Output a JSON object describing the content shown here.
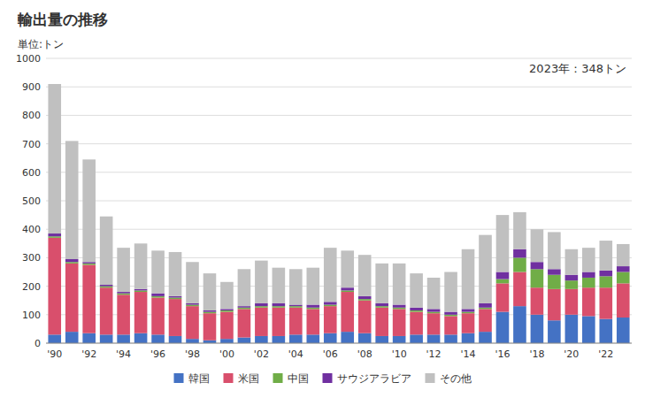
{
  "chart_data": {
    "type": "bar",
    "stacked": true,
    "title": "輸出量の推移",
    "y_label": "単位:トン",
    "annotation": "2023年：348トン",
    "categories": [
      "'90",
      null,
      "'92",
      null,
      "'94",
      null,
      "'96",
      null,
      "'98",
      null,
      "'00",
      null,
      "'02",
      null,
      "'04",
      null,
      "'06",
      null,
      "'08",
      null,
      "'10",
      null,
      "'12",
      null,
      "'14",
      null,
      "'16",
      null,
      "'18",
      null,
      "'20",
      null,
      "'22",
      null
    ],
    "series": [
      {
        "name": "韓国",
        "color": "#4472C4",
        "values": [
          30,
          40,
          35,
          30,
          30,
          35,
          30,
          25,
          15,
          10,
          15,
          20,
          25,
          25,
          30,
          30,
          35,
          40,
          35,
          25,
          25,
          30,
          30,
          30,
          35,
          40,
          110,
          130,
          100,
          80,
          100,
          95,
          85,
          90
        ]
      },
      {
        "name": "米国",
        "color": "#D94F6C",
        "values": [
          340,
          240,
          240,
          165,
          140,
          145,
          130,
          130,
          115,
          95,
          95,
          100,
          100,
          100,
          95,
          90,
          95,
          140,
          115,
          100,
          95,
          80,
          75,
          65,
          70,
          80,
          100,
          120,
          95,
          110,
          90,
          100,
          110,
          120
        ]
      },
      {
        "name": "中国",
        "color": "#70AD47",
        "values": [
          5,
          5,
          5,
          5,
          5,
          5,
          5,
          5,
          5,
          5,
          5,
          5,
          5,
          5,
          5,
          5,
          5,
          5,
          5,
          5,
          5,
          5,
          5,
          5,
          5,
          5,
          15,
          50,
          65,
          50,
          30,
          35,
          40,
          40
        ]
      },
      {
        "name": "サウジアラビア",
        "color": "#7030A0",
        "values": [
          10,
          10,
          5,
          5,
          5,
          5,
          10,
          5,
          5,
          5,
          5,
          5,
          10,
          10,
          5,
          10,
          10,
          10,
          10,
          10,
          10,
          10,
          10,
          10,
          10,
          15,
          25,
          30,
          25,
          20,
          20,
          20,
          20,
          20
        ]
      },
      {
        "name": "その他",
        "color": "#C0C0C0",
        "values": [
          525,
          415,
          360,
          240,
          155,
          160,
          150,
          155,
          145,
          130,
          95,
          130,
          150,
          125,
          125,
          130,
          190,
          130,
          145,
          140,
          145,
          120,
          110,
          140,
          210,
          240,
          200,
          130,
          115,
          130,
          90,
          85,
          105,
          78
        ]
      }
    ],
    "ylim": [
      0,
      1000
    ],
    "yticks": [
      0,
      100,
      200,
      300,
      400,
      500,
      600,
      700,
      800,
      900,
      1000
    ],
    "grid": true,
    "legend": "bottom"
  }
}
